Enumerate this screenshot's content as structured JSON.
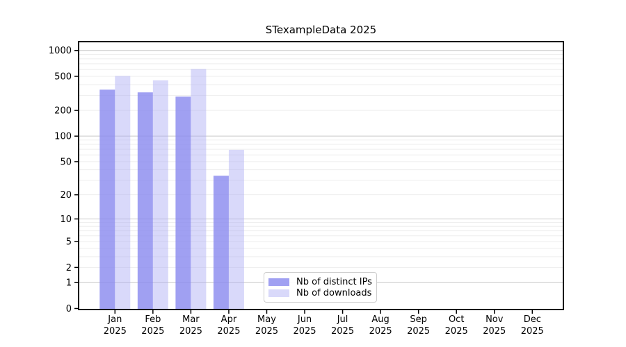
{
  "window": {
    "background_color": "#ffffff"
  },
  "chart_data": {
    "type": "bar",
    "title": "STexampleData 2025",
    "categories": [
      "Jan",
      "Feb",
      "Mar",
      "Apr",
      "May",
      "Jun",
      "Jul",
      "Aug",
      "Sep",
      "Oct",
      "Nov",
      "Dec"
    ],
    "year_label": "2025",
    "series": [
      {
        "name": "Nb of distinct IPs",
        "color": "#8888ef",
        "alpha": 0.8,
        "solid_color_hex": "#a1a1f2",
        "values": [
          350,
          325,
          290,
          34,
          0,
          0,
          0,
          0,
          0,
          0,
          0,
          0
        ]
      },
      {
        "name": "Nb of downloads",
        "color": "#ababf4",
        "alpha": 0.45,
        "solid_color_hex": "#d9d9fa",
        "values": [
          505,
          450,
          610,
          69,
          0,
          0,
          0,
          0,
          0,
          0,
          0,
          0
        ]
      }
    ],
    "yticks": [
      0,
      1,
      2,
      5,
      10,
      20,
      50,
      100,
      200,
      500,
      1000
    ],
    "ylim": [
      0,
      1280
    ],
    "xlabel": "",
    "ylabel": "",
    "scale": "log1p",
    "grid": {
      "enabled": true,
      "major_color": "#c9c9c9",
      "minor_color": "#ededed"
    },
    "axis_color": "#000000",
    "legend": {
      "position": "lower-center",
      "entries": [
        "Nb of distinct IPs",
        "Nb of downloads"
      ]
    }
  }
}
